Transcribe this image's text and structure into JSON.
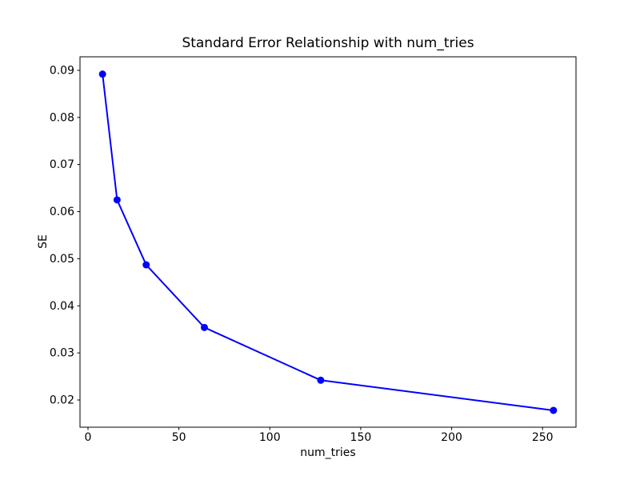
{
  "chart_data": {
    "type": "line",
    "title": "Standard Error Relationship with num_tries",
    "xlabel": "num_tries",
    "ylabel": "SE",
    "series": [
      {
        "name": "SE",
        "x": [
          8,
          16,
          32,
          64,
          128,
          256
        ],
        "y": [
          0.0892,
          0.0625,
          0.0487,
          0.0354,
          0.0242,
          0.0178
        ]
      }
    ],
    "x_ticks": [
      0,
      50,
      100,
      150,
      200,
      250
    ],
    "y_ticks": [
      0.02,
      0.03,
      0.04,
      0.05,
      0.06,
      0.07,
      0.08,
      0.09
    ],
    "xlim": [
      -4.4,
      268.4
    ],
    "ylim": [
      0.014225,
      0.092875
    ],
    "grid": false,
    "legend": "none",
    "line_color": "#0000ff",
    "marker": "o",
    "spine_color": "#000000",
    "text_color": "#000000",
    "background_color": "#ffffff"
  }
}
